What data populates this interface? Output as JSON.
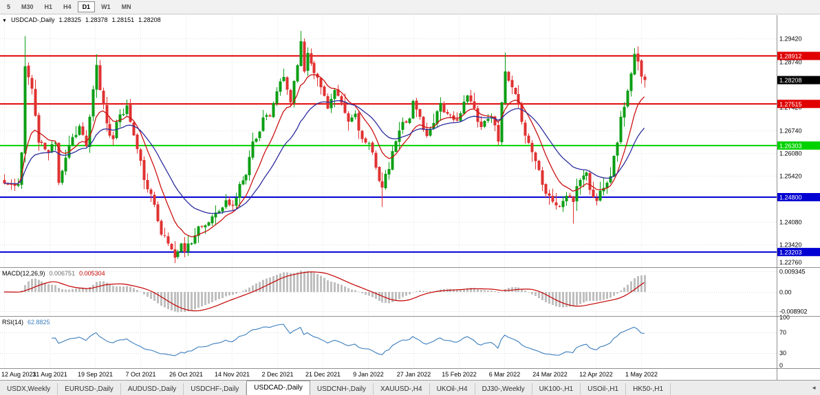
{
  "toolbar": {
    "timeframes": [
      "5",
      "M30",
      "H1",
      "H4",
      "D1",
      "W1",
      "MN"
    ],
    "active": "D1"
  },
  "chart_data": {
    "type": "candlestick",
    "header": {
      "dropdown_icon": "▼",
      "symbol": "USDCAD-,Daily",
      "open": "1.28325",
      "high": "1.28378",
      "low": "1.28151",
      "close": "1.28208"
    },
    "price_scale": {
      "top": 1.301,
      "bottom": 1.2278
    },
    "y_axis_labels": [
      "1.29420",
      "1.28740",
      "1.27420",
      "1.26740",
      "1.26080",
      "1.25420",
      "1.24760",
      "1.24080",
      "1.23420",
      "1.22760"
    ],
    "levels": [
      {
        "value": 1.28912,
        "label": "1.28912",
        "color": "#e00000"
      },
      {
        "value": 1.27515,
        "label": "1.27515",
        "color": "#e00000"
      },
      {
        "value": 1.26303,
        "label": "1.26303",
        "color": "#00d200"
      },
      {
        "value": 1.248,
        "label": "1.24800",
        "color": "#0000d2"
      },
      {
        "value": 1.23203,
        "label": "1.23203",
        "color": "#0000d2"
      }
    ],
    "current_price": {
      "value": 1.28208,
      "label": "1.28208",
      "color": "#000000"
    },
    "dates": [
      "12 Aug 2021",
      "31 Aug 2021",
      "19 Sep 2021",
      "7 Oct 2021",
      "26 Oct 2021",
      "14 Nov 2021",
      "2 Dec 2021",
      "21 Dec 2021",
      "9 Jan 2022",
      "27 Jan 2022",
      "15 Feb 2022",
      "6 Mar 2022",
      "24 Mar 2022",
      "12 Apr 2022",
      "1 May 2022"
    ],
    "candles": {
      "count": 189,
      "seed": 11,
      "last_close": 1.28208,
      "up_color": "#0b9e14",
      "down_color": "#e03131",
      "waypoints": [
        [
          0,
          1.252
        ],
        [
          4,
          1.2505
        ],
        [
          5,
          1.2602
        ],
        [
          6,
          1.287
        ],
        [
          8,
          1.2795
        ],
        [
          10,
          1.264
        ],
        [
          13,
          1.2605
        ],
        [
          15,
          1.2645
        ],
        [
          16,
          1.2535
        ],
        [
          19,
          1.264
        ],
        [
          22,
          1.269
        ],
        [
          24,
          1.263
        ],
        [
          26,
          1.278
        ],
        [
          27,
          1.285
        ],
        [
          28,
          1.279
        ],
        [
          30,
          1.27
        ],
        [
          32,
          1.265
        ],
        [
          34,
          1.272
        ],
        [
          36,
          1.2745
        ],
        [
          38,
          1.266
        ],
        [
          40,
          1.2575
        ],
        [
          42,
          1.2495
        ],
        [
          44,
          1.2455
        ],
        [
          46,
          1.239
        ],
        [
          48,
          1.2345
        ],
        [
          50,
          1.231
        ],
        [
          52,
          1.234
        ],
        [
          53,
          1.233
        ],
        [
          55,
          1.236
        ],
        [
          57,
          1.2395
        ],
        [
          58,
          1.238
        ],
        [
          60,
          1.2405
        ],
        [
          62,
          1.245
        ],
        [
          63,
          1.244
        ],
        [
          65,
          1.2465
        ],
        [
          67,
          1.2455
        ],
        [
          69,
          1.251
        ],
        [
          71,
          1.256
        ],
        [
          73,
          1.264
        ],
        [
          75,
          1.268
        ],
        [
          76,
          1.272
        ],
        [
          78,
          1.27
        ],
        [
          80,
          1.2785
        ],
        [
          82,
          1.282
        ],
        [
          84,
          1.276
        ],
        [
          86,
          1.288
        ],
        [
          87,
          1.293
        ],
        [
          88,
          1.285
        ],
        [
          89,
          1.2905
        ],
        [
          91,
          1.286
        ],
        [
          93,
          1.28
        ],
        [
          95,
          1.275
        ],
        [
          97,
          1.279
        ],
        [
          99,
          1.2735
        ],
        [
          101,
          1.269
        ],
        [
          103,
          1.272
        ],
        [
          105,
          1.265
        ],
        [
          107,
          1.262
        ],
        [
          109,
          1.257
        ],
        [
          111,
          1.251
        ],
        [
          113,
          1.256
        ],
        [
          115,
          1.264
        ],
        [
          117,
          1.269
        ],
        [
          119,
          1.272
        ],
        [
          120,
          1.276
        ],
        [
          122,
          1.271
        ],
        [
          124,
          1.2655
        ],
        [
          126,
          1.271
        ],
        [
          128,
          1.276
        ],
        [
          130,
          1.272
        ],
        [
          132,
          1.269
        ],
        [
          134,
          1.273
        ],
        [
          136,
          1.277
        ],
        [
          138,
          1.273
        ],
        [
          140,
          1.269
        ],
        [
          142,
          1.272
        ],
        [
          144,
          1.27
        ],
        [
          145,
          1.266
        ],
        [
          147,
          1.284
        ],
        [
          148,
          1.281
        ],
        [
          150,
          1.276
        ],
        [
          152,
          1.27
        ],
        [
          154,
          1.264
        ],
        [
          156,
          1.259
        ],
        [
          158,
          1.253
        ],
        [
          159,
          1.251
        ],
        [
          161,
          1.248
        ],
        [
          163,
          1.245
        ],
        [
          165,
          1.249
        ],
        [
          167,
          1.247
        ],
        [
          169,
          1.253
        ],
        [
          171,
          1.256
        ],
        [
          172,
          1.25
        ],
        [
          174,
          1.247
        ],
        [
          176,
          1.252
        ],
        [
          178,
          1.256
        ],
        [
          179,
          1.26
        ],
        [
          180,
          1.265
        ],
        [
          181,
          1.271
        ],
        [
          182,
          1.275
        ],
        [
          183,
          1.279
        ],
        [
          184,
          1.283
        ],
        [
          185,
          1.2885
        ],
        [
          186,
          1.286
        ],
        [
          187,
          1.2835
        ],
        [
          188,
          1.28208
        ]
      ],
      "extremes": {
        "6": {
          "high": 1.2949
        },
        "27": {
          "high": 1.2896
        },
        "50": {
          "low": 1.2288
        },
        "87": {
          "high": 1.2964
        },
        "111": {
          "low": 1.2452
        },
        "147": {
          "high": 1.2901
        },
        "167": {
          "low": 1.2403
        },
        "185": {
          "high": 1.2914
        }
      }
    },
    "moving_averages": [
      {
        "type": "ema",
        "period": 10,
        "color": "#cc1111"
      },
      {
        "type": "ema",
        "period": 24,
        "color": "#2b2b9e"
      }
    ],
    "macd": {
      "title": "MACD(12,26,9)",
      "value_main": "0.006751",
      "value_signal": "0.005304",
      "axis_labels": [
        "0.009345",
        "0.00",
        "-0.008902"
      ],
      "hist_color": "#bfbfbf",
      "signal_color": "#c40000"
    },
    "rsi": {
      "title": "RSI(14)",
      "value": "62.8825",
      "axis_labels": [
        "100",
        "70",
        "30",
        "0"
      ],
      "levels": [
        70,
        30
      ],
      "color": "#3a7dbd"
    }
  },
  "tabs": {
    "active": "USDCAD-,Daily",
    "scroll_icon": "◄",
    "items": [
      "USDX,Weekly",
      "EURUSD-,Daily",
      "AUDUSD-,Daily",
      "USDCHF-,Daily",
      "USDCAD-,Daily",
      "USDCNH-,Daily",
      "XAUUSD-,H4",
      "UKOil-,H4",
      "DJ30-,Weekly",
      "UK100-,H1",
      "USOil-,H1",
      "HK50-,H1"
    ]
  }
}
